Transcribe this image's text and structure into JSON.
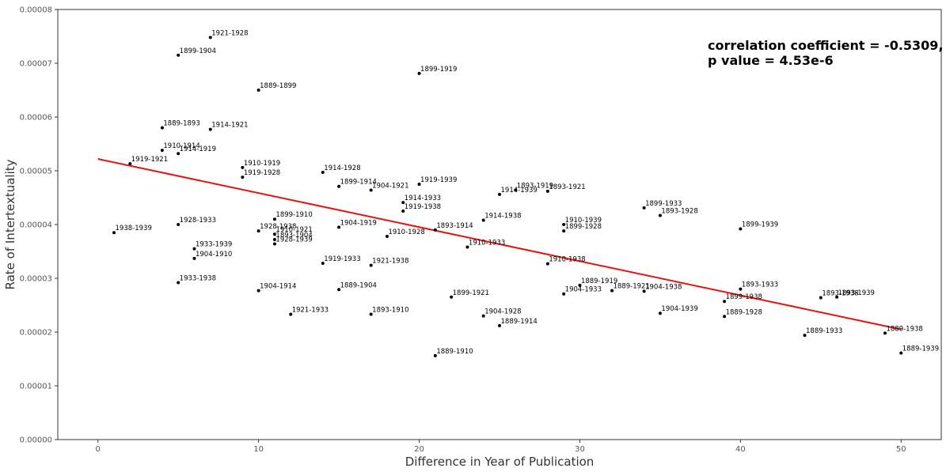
{
  "chart_data": {
    "type": "scatter",
    "title": "",
    "xlabel": "Difference in Year of Publication",
    "ylabel": "Rate of Intertextuality",
    "xlim": [
      -2.5,
      52.5
    ],
    "ylim": [
      0,
      8e-05
    ],
    "xticks": [
      0,
      10,
      20,
      30,
      40,
      50
    ],
    "xtick_labels": [
      "0",
      "10",
      "20",
      "30",
      "40",
      "50"
    ],
    "yticks": [
      0,
      1e-05,
      2e-05,
      3e-05,
      4e-05,
      5e-05,
      6e-05,
      7e-05,
      8e-05
    ],
    "ytick_labels": [
      "0.00000",
      "0.00001",
      "0.00002",
      "0.00003",
      "0.00004",
      "0.00005",
      "0.00006",
      "0.00007",
      "0.00008"
    ],
    "grid": false,
    "marker_color": "#000000",
    "annotation": {
      "line1": "correlation coefficient = -0.5309,",
      "line2": "p value = 4.53e-6"
    },
    "regression_line": {
      "color": "#e8120c",
      "x": [
        0,
        50
      ],
      "y": [
        5.22e-05,
        2.05e-05
      ]
    },
    "points": [
      {
        "x": 1,
        "y": 3.85e-05,
        "label": "1938-1939"
      },
      {
        "x": 2,
        "y": 5.13e-05,
        "label": "1919-1921"
      },
      {
        "x": 4,
        "y": 5.8e-05,
        "label": "1889-1893"
      },
      {
        "x": 4,
        "y": 5.38e-05,
        "label": "1910-1914"
      },
      {
        "x": 5,
        "y": 5.32e-05,
        "label": "1914-1919"
      },
      {
        "x": 5,
        "y": 7.15e-05,
        "label": "1899-1904"
      },
      {
        "x": 5,
        "y": 4e-05,
        "label": "1928-1933"
      },
      {
        "x": 5,
        "y": 2.92e-05,
        "label": "1933-1938"
      },
      {
        "x": 6,
        "y": 3.55e-05,
        "label": "1933-1939"
      },
      {
        "x": 6,
        "y": 3.37e-05,
        "label": "1904-1910"
      },
      {
        "x": 7,
        "y": 7.48e-05,
        "label": "1921-1928"
      },
      {
        "x": 7,
        "y": 5.77e-05,
        "label": "1914-1921"
      },
      {
        "x": 9,
        "y": 5.06e-05,
        "label": "1910-1919"
      },
      {
        "x": 9,
        "y": 4.88e-05,
        "label": "1919-1928"
      },
      {
        "x": 10,
        "y": 6.5e-05,
        "label": "1889-1899"
      },
      {
        "x": 10,
        "y": 3.88e-05,
        "label": "1928-1938"
      },
      {
        "x": 10,
        "y": 2.77e-05,
        "label": "1904-1914"
      },
      {
        "x": 11,
        "y": 4.1e-05,
        "label": "1899-1910"
      },
      {
        "x": 11,
        "y": 3.82e-05,
        "label": "1910-1921"
      },
      {
        "x": 11,
        "y": 3.72e-05,
        "label": "1893-1904"
      },
      {
        "x": 11,
        "y": 3.64e-05,
        "label": "1928-1939"
      },
      {
        "x": 12,
        "y": 2.33e-05,
        "label": "1921-1933"
      },
      {
        "x": 14,
        "y": 4.97e-05,
        "label": "1914-1928"
      },
      {
        "x": 14,
        "y": 3.28e-05,
        "label": "1919-1933"
      },
      {
        "x": 15,
        "y": 4.71e-05,
        "label": "1899-1914"
      },
      {
        "x": 15,
        "y": 3.95e-05,
        "label": "1904-1919"
      },
      {
        "x": 15,
        "y": 2.79e-05,
        "label": "1889-1904"
      },
      {
        "x": 17,
        "y": 4.64e-05,
        "label": "1904-1921"
      },
      {
        "x": 17,
        "y": 3.24e-05,
        "label": "1921-1938"
      },
      {
        "x": 17,
        "y": 2.33e-05,
        "label": "1893-1910"
      },
      {
        "x": 18,
        "y": 3.78e-05,
        "label": "1910-1928"
      },
      {
        "x": 19,
        "y": 4.41e-05,
        "label": "1914-1933"
      },
      {
        "x": 19,
        "y": 4.25e-05,
        "label": "1919-1938"
      },
      {
        "x": 20,
        "y": 6.81e-05,
        "label": "1899-1919"
      },
      {
        "x": 20,
        "y": 4.75e-05,
        "label": "1919-1939"
      },
      {
        "x": 21,
        "y": 3.9e-05,
        "label": "1893-1914"
      },
      {
        "x": 21,
        "y": 1.56e-05,
        "label": "1889-1910"
      },
      {
        "x": 22,
        "y": 2.65e-05,
        "label": "1899-1921"
      },
      {
        "x": 23,
        "y": 3.58e-05,
        "label": "1910-1933"
      },
      {
        "x": 24,
        "y": 4.08e-05,
        "label": "1914-1938"
      },
      {
        "x": 24,
        "y": 2.3e-05,
        "label": "1904-1928"
      },
      {
        "x": 25,
        "y": 4.56e-05,
        "label": "1914-1939"
      },
      {
        "x": 25,
        "y": 2.12e-05,
        "label": "1889-1914"
      },
      {
        "x": 26,
        "y": 4.64e-05,
        "label": "1893-1919"
      },
      {
        "x": 28,
        "y": 4.62e-05,
        "label": "1893-1921"
      },
      {
        "x": 28,
        "y": 3.27e-05,
        "label": "1910-1938"
      },
      {
        "x": 29,
        "y": 4e-05,
        "label": "1910-1939"
      },
      {
        "x": 29,
        "y": 3.88e-05,
        "label": "1899-1928"
      },
      {
        "x": 29,
        "y": 2.71e-05,
        "label": "1904-1933"
      },
      {
        "x": 30,
        "y": 2.87e-05,
        "label": "1889-1919"
      },
      {
        "x": 32,
        "y": 2.77e-05,
        "label": "1889-1921"
      },
      {
        "x": 34,
        "y": 4.31e-05,
        "label": "1899-1933"
      },
      {
        "x": 34,
        "y": 2.76e-05,
        "label": "1904-1938"
      },
      {
        "x": 35,
        "y": 4.17e-05,
        "label": "1893-1928"
      },
      {
        "x": 35,
        "y": 2.35e-05,
        "label": "1904-1939"
      },
      {
        "x": 39,
        "y": 2.57e-05,
        "label": "1899-1938"
      },
      {
        "x": 39,
        "y": 2.29e-05,
        "label": "1889-1928"
      },
      {
        "x": 40,
        "y": 3.92e-05,
        "label": "1899-1939"
      },
      {
        "x": 40,
        "y": 2.8e-05,
        "label": "1893-1933"
      },
      {
        "x": 44,
        "y": 1.94e-05,
        "label": "1889-1933"
      },
      {
        "x": 45,
        "y": 2.64e-05,
        "label": "1893-1938"
      },
      {
        "x": 46,
        "y": 2.65e-05,
        "label": "1893-1939"
      },
      {
        "x": 49,
        "y": 1.98e-05,
        "label": "1889-1938"
      },
      {
        "x": 50,
        "y": 1.61e-05,
        "label": "1889-1939"
      }
    ]
  }
}
